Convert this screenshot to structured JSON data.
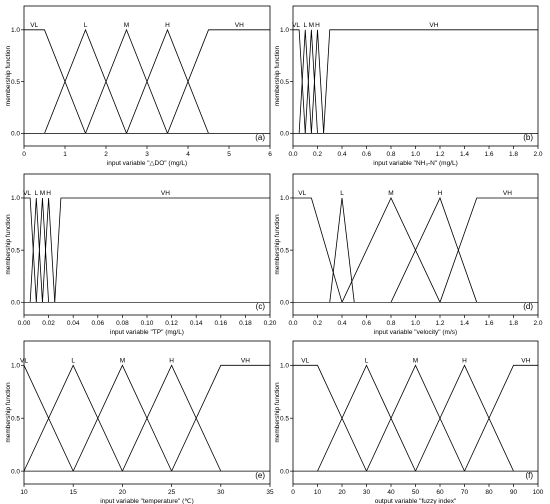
{
  "chart_data": [
    {
      "type": "line",
      "panel_label": "(a)",
      "xlabel": "input variable \"△DO\" (mg/L)",
      "ylabel": "membership function",
      "xlim": [
        0,
        6
      ],
      "ylim": [
        0,
        1
      ],
      "xticks": [
        "0",
        "1",
        "2",
        "3",
        "4",
        "5",
        "6"
      ],
      "yticks": [
        "0.0",
        "0.5",
        "1.0"
      ],
      "series": [
        {
          "name": "VL",
          "x": [
            0,
            0.5,
            1.5
          ],
          "y": [
            1,
            1,
            0
          ]
        },
        {
          "name": "L",
          "x": [
            0.5,
            1.5,
            2.5
          ],
          "y": [
            0,
            1,
            0
          ]
        },
        {
          "name": "M",
          "x": [
            1.5,
            2.5,
            3.5
          ],
          "y": [
            0,
            1,
            0
          ]
        },
        {
          "name": "H",
          "x": [
            2.5,
            3.5,
            4.5
          ],
          "y": [
            0,
            1,
            0
          ]
        },
        {
          "name": "VH",
          "x": [
            3.5,
            4.5,
            6
          ],
          "y": [
            0,
            1,
            1
          ]
        }
      ]
    },
    {
      "type": "line",
      "panel_label": "(b)",
      "xlabel": "input variable \"NH₃-N\" (mg/L)",
      "ylabel": "membership function",
      "xlim": [
        0,
        2
      ],
      "ylim": [
        0,
        1
      ],
      "xticks": [
        "0.0",
        "0.2",
        "0.4",
        "0.6",
        "0.8",
        "1.0",
        "1.2",
        "1.4",
        "1.6",
        "1.8",
        "2.0"
      ],
      "yticks": [
        "0.0",
        "0.5",
        "1.0"
      ],
      "series": [
        {
          "name": "VL",
          "x": [
            0,
            0.05,
            0.1
          ],
          "y": [
            1,
            1,
            0
          ]
        },
        {
          "name": "L",
          "x": [
            0.05,
            0.1,
            0.15
          ],
          "y": [
            0,
            1,
            0
          ]
        },
        {
          "name": "M",
          "x": [
            0.1,
            0.15,
            0.2
          ],
          "y": [
            0,
            1,
            0
          ]
        },
        {
          "name": "H",
          "x": [
            0.15,
            0.2,
            0.25
          ],
          "y": [
            0,
            1,
            0
          ]
        },
        {
          "name": "VH",
          "x": [
            0.25,
            0.3,
            2
          ],
          "y": [
            0,
            1,
            1
          ]
        }
      ]
    },
    {
      "type": "line",
      "panel_label": "(c)",
      "xlabel": "input variable \"TP\" (mg/L)",
      "ylabel": "membership function",
      "xlim": [
        0,
        0.2
      ],
      "ylim": [
        0,
        1
      ],
      "xticks": [
        "0.00",
        "0.02",
        "0.04",
        "0.06",
        "0.08",
        "0.10",
        "0.12",
        "0.14",
        "0.16",
        "0.18",
        "0.20"
      ],
      "yticks": [
        "0.0",
        "0.5",
        "1.0"
      ],
      "series": [
        {
          "name": "VL",
          "x": [
            0,
            0.005,
            0.01
          ],
          "y": [
            1,
            1,
            0
          ]
        },
        {
          "name": "L",
          "x": [
            0.005,
            0.01,
            0.015
          ],
          "y": [
            0,
            1,
            0
          ]
        },
        {
          "name": "M",
          "x": [
            0.01,
            0.015,
            0.02
          ],
          "y": [
            0,
            1,
            0
          ]
        },
        {
          "name": "H",
          "x": [
            0.015,
            0.02,
            0.025
          ],
          "y": [
            0,
            1,
            0
          ]
        },
        {
          "name": "VH",
          "x": [
            0.025,
            0.03,
            0.2
          ],
          "y": [
            0,
            1,
            1
          ]
        }
      ]
    },
    {
      "type": "line",
      "panel_label": "(d)",
      "xlabel": "input variable \"velocity\" (m/s)",
      "ylabel": "membership function",
      "xlim": [
        0,
        2
      ],
      "ylim": [
        0,
        1
      ],
      "xticks": [
        "0.0",
        "0.2",
        "0.4",
        "0.6",
        "0.8",
        "1.0",
        "1.2",
        "1.4",
        "1.6",
        "1.8",
        "2.0"
      ],
      "yticks": [
        "0.0",
        "0.5",
        "1.0"
      ],
      "series": [
        {
          "name": "VL",
          "x": [
            0,
            0.15,
            0.4
          ],
          "y": [
            1,
            1,
            0
          ]
        },
        {
          "name": "L",
          "x": [
            0.3,
            0.4,
            0.5
          ],
          "y": [
            0,
            1,
            0
          ]
        },
        {
          "name": "M",
          "x": [
            0.4,
            0.8,
            1.2
          ],
          "y": [
            0,
            1,
            0
          ]
        },
        {
          "name": "H",
          "x": [
            0.8,
            1.2,
            1.5
          ],
          "y": [
            0,
            1,
            0
          ]
        },
        {
          "name": "VH",
          "x": [
            1.2,
            1.5,
            2
          ],
          "y": [
            0,
            1,
            1
          ]
        }
      ]
    },
    {
      "type": "line",
      "panel_label": "(e)",
      "xlabel": "input variable \"temperature\" (℃)",
      "ylabel": "membership function",
      "xlim": [
        10,
        35
      ],
      "ylim": [
        0,
        1
      ],
      "xticks": [
        "10",
        "15",
        "20",
        "25",
        "30",
        "35"
      ],
      "yticks": [
        "0.0",
        "0.5",
        "1.0"
      ],
      "series": [
        {
          "name": "VL",
          "x": [
            10,
            15
          ],
          "y": [
            1,
            0
          ]
        },
        {
          "name": "L",
          "x": [
            10,
            15,
            20
          ],
          "y": [
            0,
            1,
            0
          ]
        },
        {
          "name": "M",
          "x": [
            15,
            20,
            25
          ],
          "y": [
            0,
            1,
            0
          ]
        },
        {
          "name": "H",
          "x": [
            20,
            25,
            30
          ],
          "y": [
            0,
            1,
            0
          ]
        },
        {
          "name": "VH",
          "x": [
            25,
            30,
            35
          ],
          "y": [
            0,
            1,
            1
          ]
        }
      ]
    },
    {
      "type": "line",
      "panel_label": "(f)",
      "xlabel": "output variable \"fuzzy index\"",
      "ylabel": "membership function",
      "xlim": [
        0,
        100
      ],
      "ylim": [
        0,
        1
      ],
      "xticks": [
        "0",
        "10",
        "20",
        "30",
        "40",
        "50",
        "60",
        "70",
        "80",
        "90",
        "100"
      ],
      "yticks": [
        "0.0",
        "0.5",
        "1.0"
      ],
      "series": [
        {
          "name": "VL",
          "x": [
            0,
            10,
            30
          ],
          "y": [
            1,
            1,
            0
          ]
        },
        {
          "name": "L",
          "x": [
            10,
            30,
            50
          ],
          "y": [
            0,
            1,
            0
          ]
        },
        {
          "name": "M",
          "x": [
            30,
            50,
            70
          ],
          "y": [
            0,
            1,
            0
          ]
        },
        {
          "name": "H",
          "x": [
            50,
            70,
            90
          ],
          "y": [
            0,
            1,
            0
          ]
        },
        {
          "name": "VH",
          "x": [
            70,
            90,
            100
          ],
          "y": [
            0,
            1,
            1
          ]
        }
      ]
    }
  ]
}
